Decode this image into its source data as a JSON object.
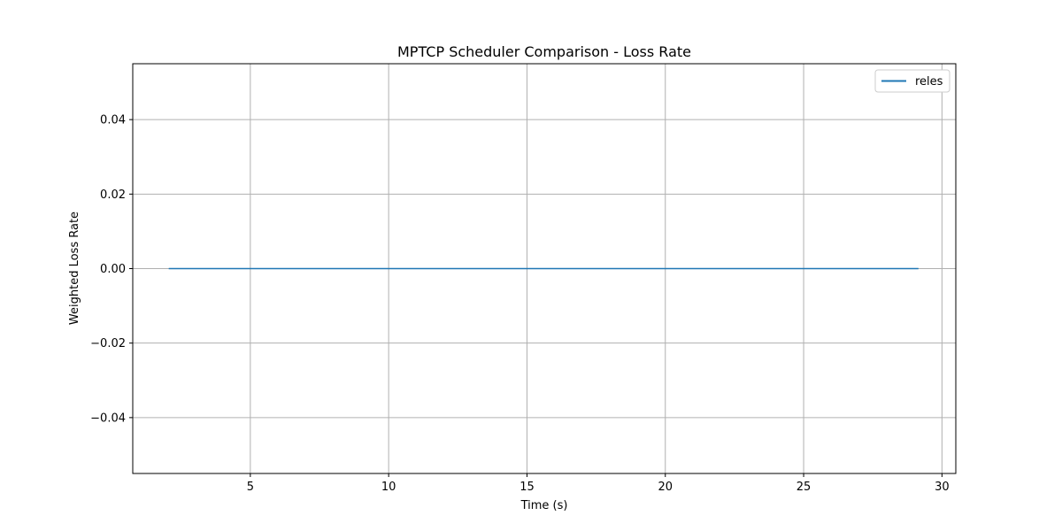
{
  "chart_data": {
    "type": "line",
    "title": "MPTCP Scheduler Comparison - Loss Rate",
    "xlabel": "Time (s)",
    "ylabel": "Weighted Loss Rate",
    "xlim": [
      0.75,
      30.5
    ],
    "ylim": [
      -0.055,
      0.055
    ],
    "xticks": [
      5,
      10,
      15,
      20,
      25,
      30
    ],
    "xtick_labels": [
      "5",
      "10",
      "15",
      "20",
      "25",
      "30"
    ],
    "yticks": [
      -0.04,
      -0.02,
      0.0,
      0.02,
      0.04
    ],
    "ytick_labels": [
      "−0.04",
      "−0.02",
      "0.00",
      "0.02",
      "0.04"
    ],
    "grid": true,
    "legend_position": "upper right",
    "series": [
      {
        "name": "reles",
        "color": "#1f77b4",
        "x": [
          2.05,
          5,
          10,
          15,
          20,
          25,
          29.15
        ],
        "y": [
          0,
          0,
          0,
          0,
          0,
          0,
          0
        ]
      }
    ]
  }
}
